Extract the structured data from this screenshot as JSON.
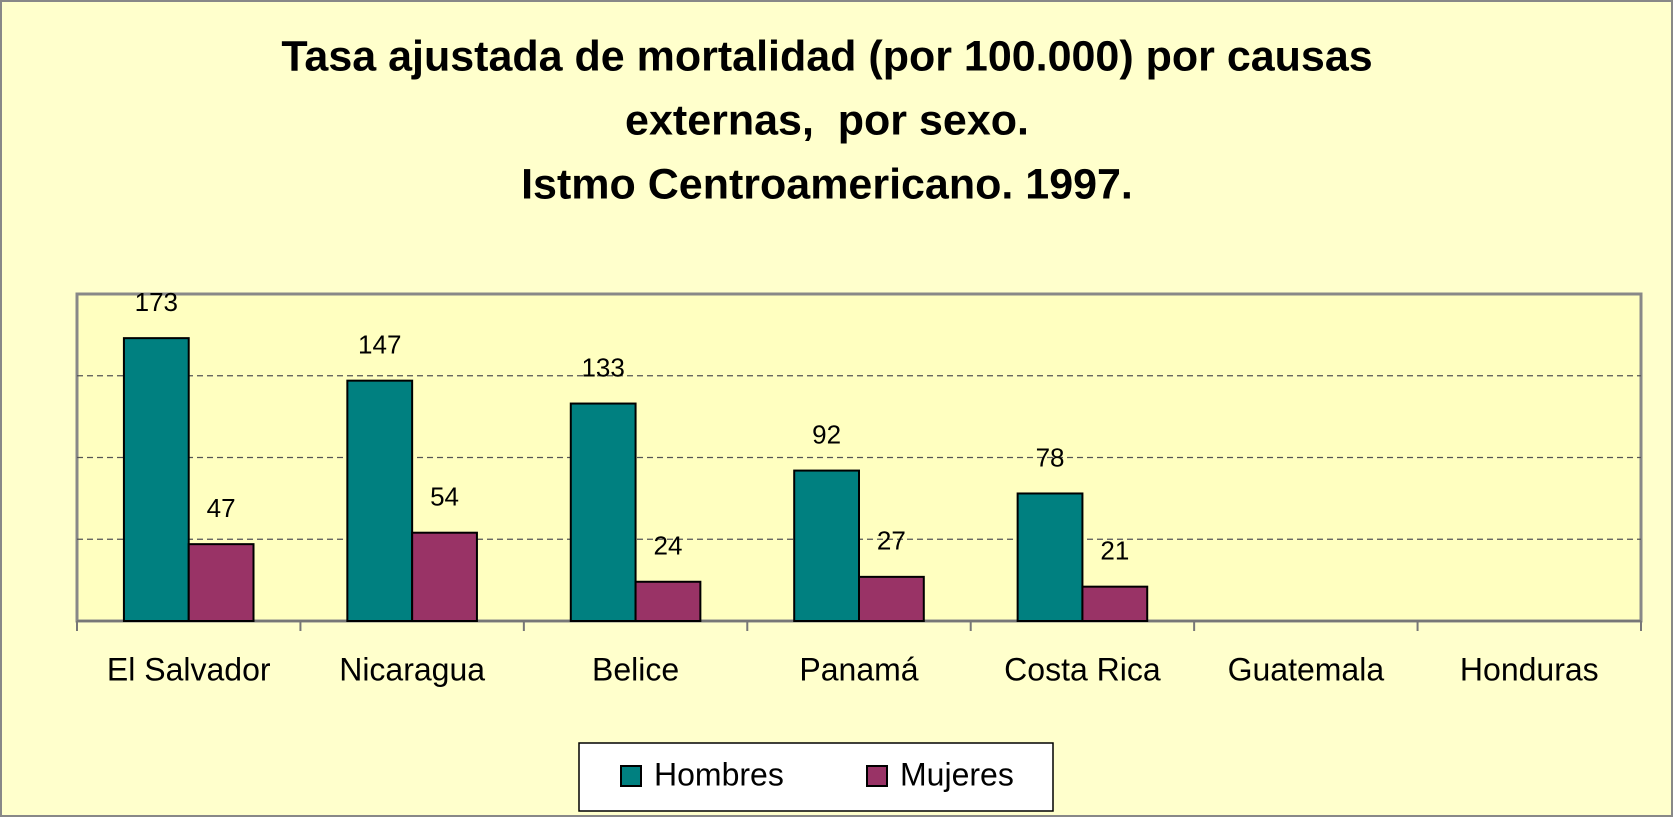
{
  "chart_data": {
    "type": "bar",
    "title": [
      "Tasa ajustada de mortalidad (por 100.000) por causas",
      "externas,  por sexo.",
      "Istmo Centroamericano. 1997."
    ],
    "categories": [
      "El Salvador",
      "Nicaragua",
      "Belice",
      "Panamá",
      "Costa Rica",
      "Guatemala",
      "Honduras"
    ],
    "series": [
      {
        "name": "Hombres",
        "color": "#008080",
        "values": [
          173,
          147,
          133,
          92,
          78,
          null,
          null
        ]
      },
      {
        "name": "Mujeres",
        "color": "#993366",
        "values": [
          47,
          54,
          24,
          27,
          21,
          null,
          null
        ]
      }
    ],
    "ylim": [
      0,
      200
    ],
    "yticks": [
      50,
      100,
      150
    ],
    "grid": true,
    "legend": "bottom"
  }
}
